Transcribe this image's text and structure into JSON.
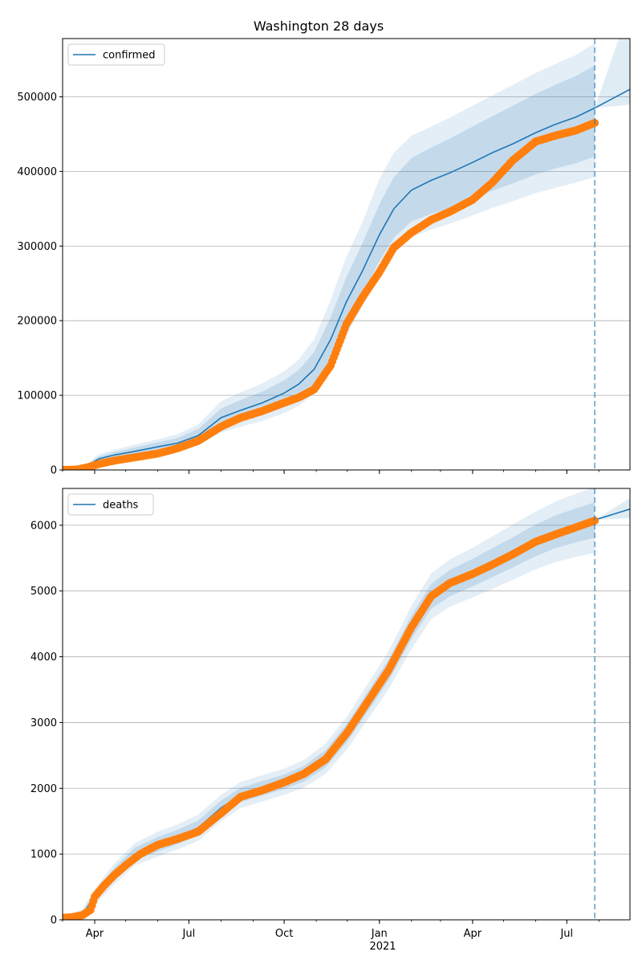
{
  "chart_data": [
    {
      "type": "line",
      "title": "Washington 28 days",
      "legend": [
        "confirmed"
      ],
      "legend_position": "top-left",
      "grid": "horizontal",
      "xlabel": "",
      "ylabel": "",
      "xlim": [
        "2020-03-01",
        "2021-08-31"
      ],
      "ylim": [
        0,
        578000
      ],
      "yticks": [
        0,
        100000,
        200000,
        300000,
        400000,
        500000
      ],
      "forecast_line_date": "2021-07-28",
      "colors": {
        "model": "#1f77b4",
        "observed": "#ff7f0e",
        "band": "#1f77b4",
        "forecast_line": "#1f77b4"
      },
      "series": [
        {
          "name": "confirmed",
          "kind": "model",
          "x": [
            "2020-03-01",
            "2020-03-15",
            "2020-03-25",
            "2020-04-05",
            "2020-04-20",
            "2020-05-10",
            "2020-06-01",
            "2020-06-20",
            "2020-07-10",
            "2020-08-01",
            "2020-08-20",
            "2020-09-10",
            "2020-10-01",
            "2020-10-15",
            "2020-10-30",
            "2020-11-15",
            "2020-11-30",
            "2020-12-15",
            "2021-01-01",
            "2021-01-15",
            "2021-02-01",
            "2021-02-20",
            "2021-03-10",
            "2021-04-01",
            "2021-04-20",
            "2021-05-10",
            "2021-06-01",
            "2021-06-20",
            "2021-07-10",
            "2021-07-28"
          ],
          "y": [
            0,
            1000,
            6000,
            15000,
            20000,
            25000,
            31000,
            36000,
            46000,
            70000,
            80000,
            90000,
            103000,
            115000,
            135000,
            175000,
            225000,
            265000,
            315000,
            350000,
            375000,
            388000,
            398000,
            412000,
            425000,
            437000,
            452000,
            463000,
            473000,
            485000
          ],
          "band_50": [
            [
              0,
              0
            ],
            [
              500,
              1500
            ],
            [
              4500,
              7500
            ],
            [
              12000,
              18000
            ],
            [
              16000,
              24000
            ],
            [
              20000,
              30000
            ],
            [
              25000,
              37000
            ],
            [
              29000,
              43000
            ],
            [
              38000,
              55000
            ],
            [
              58000,
              82000
            ],
            [
              67000,
              94000
            ],
            [
              76000,
              105000
            ],
            [
              87000,
              120000
            ],
            [
              97000,
              134000
            ],
            [
              114000,
              158000
            ],
            [
              150000,
              205000
            ],
            [
              196000,
              258000
            ],
            [
              234000,
              302000
            ],
            [
              280000,
              356000
            ],
            [
              311000,
              392000
            ],
            [
              333000,
              418000
            ],
            [
              343000,
              432000
            ],
            [
              351000,
              444000
            ],
            [
              363000,
              460000
            ],
            [
              374000,
              474000
            ],
            [
              384000,
              488000
            ],
            [
              396000,
              504000
            ],
            [
              404000,
              516000
            ],
            [
              411000,
              528000
            ],
            [
              420000,
              542000
            ]
          ],
          "band_80": [
            [
              0,
              0
            ],
            [
              300,
              1800
            ],
            [
              3500,
              9000
            ],
            [
              10000,
              21000
            ],
            [
              13000,
              27000
            ],
            [
              17000,
              34000
            ],
            [
              21000,
              41000
            ],
            [
              25000,
              48000
            ],
            [
              33000,
              61000
            ],
            [
              50000,
              92000
            ],
            [
              58000,
              104000
            ],
            [
              66000,
              116000
            ],
            [
              76000,
              132000
            ],
            [
              86000,
              148000
            ],
            [
              102000,
              175000
            ],
            [
              135000,
              228000
            ],
            [
              180000,
              285000
            ],
            [
              218000,
              330000
            ],
            [
              262000,
              390000
            ],
            [
              290000,
              425000
            ],
            [
              312000,
              448000
            ],
            [
              322000,
              460000
            ],
            [
              330000,
              472000
            ],
            [
              341000,
              488000
            ],
            [
              351000,
              502000
            ],
            [
              360000,
              516000
            ],
            [
              371000,
              532000
            ],
            [
              378000,
              544000
            ],
            [
              385000,
              556000
            ],
            [
              392000,
              572000
            ]
          ]
        },
        {
          "name": "observed",
          "kind": "observed",
          "x": [
            "2020-03-01",
            "2020-03-15",
            "2020-03-25",
            "2020-04-05",
            "2020-04-20",
            "2020-05-10",
            "2020-06-01",
            "2020-06-20",
            "2020-07-10",
            "2020-08-01",
            "2020-08-20",
            "2020-09-10",
            "2020-10-01",
            "2020-10-15",
            "2020-10-30",
            "2020-11-15",
            "2020-11-30",
            "2020-12-15",
            "2021-01-01",
            "2021-01-15",
            "2021-02-01",
            "2021-02-20",
            "2021-03-10",
            "2021-04-01",
            "2021-04-20",
            "2021-05-10",
            "2021-06-01",
            "2021-06-20",
            "2021-07-10",
            "2021-07-28"
          ],
          "y": [
            0,
            600,
            3500,
            8000,
            12500,
            17000,
            22000,
            29000,
            39000,
            58000,
            70000,
            79000,
            90000,
            97000,
            108000,
            140000,
            195000,
            230000,
            265000,
            298000,
            318000,
            335000,
            346000,
            362000,
            385000,
            415000,
            440000,
            448000,
            455000,
            465000
          ]
        }
      ]
    },
    {
      "type": "line",
      "title": "",
      "legend": [
        "deaths"
      ],
      "legend_position": "top-left",
      "grid": "horizontal",
      "xlabel": "",
      "ylabel": "",
      "xlim": [
        "2020-03-01",
        "2021-08-31"
      ],
      "ylim": [
        0,
        6560
      ],
      "yticks": [
        0,
        1000,
        2000,
        3000,
        4000,
        5000,
        6000
      ],
      "xticks": [
        {
          "date": "2020-04-01",
          "label": "Apr"
        },
        {
          "date": "2020-07-01",
          "label": "Jul"
        },
        {
          "date": "2020-10-01",
          "label": "Oct"
        },
        {
          "date": "2021-01-01",
          "label": "Jan"
        },
        {
          "date": "2021-04-01",
          "label": "Apr"
        },
        {
          "date": "2021-07-01",
          "label": "Jul"
        }
      ],
      "year_label": "2021",
      "forecast_line_date": "2021-07-28",
      "colors": {
        "model": "#1f77b4",
        "observed": "#ff7f0e",
        "band": "#1f77b4",
        "forecast_line": "#1f77b4"
      },
      "series": [
        {
          "name": "deaths",
          "kind": "model",
          "x": [
            "2020-03-01",
            "2020-03-20",
            "2020-04-01",
            "2020-04-20",
            "2020-05-10",
            "2020-06-01",
            "2020-06-20",
            "2020-07-10",
            "2020-08-01",
            "2020-08-20",
            "2020-09-10",
            "2020-10-01",
            "2020-10-20",
            "2020-11-10",
            "2020-12-01",
            "2020-12-20",
            "2021-01-10",
            "2021-02-01",
            "2021-02-20",
            "2021-03-10",
            "2021-04-01",
            "2021-04-20",
            "2021-05-10",
            "2021-06-01",
            "2021-06-20",
            "2021-07-10",
            "2021-07-28"
          ],
          "y": [
            10,
            80,
            350,
            700,
            1000,
            1150,
            1260,
            1400,
            1700,
            1900,
            2000,
            2100,
            2220,
            2450,
            2850,
            3300,
            3800,
            4450,
            4920,
            5120,
            5280,
            5430,
            5590,
            5770,
            5900,
            6000,
            6080
          ],
          "band_50": [
            [
              0,
              20
            ],
            [
              40,
              120
            ],
            [
              280,
              420
            ],
            [
              600,
              790
            ],
            [
              900,
              1100
            ],
            [
              1040,
              1260
            ],
            [
              1150,
              1370
            ],
            [
              1290,
              1510
            ],
            [
              1590,
              1810
            ],
            [
              1790,
              2010
            ],
            [
              1890,
              2110
            ],
            [
              1990,
              2210
            ],
            [
              2100,
              2340
            ],
            [
              2320,
              2580
            ],
            [
              2710,
              2990
            ],
            [
              3150,
              3450
            ],
            [
              3640,
              3960
            ],
            [
              4270,
              4630
            ],
            [
              4730,
              5110
            ],
            [
              4920,
              5320
            ],
            [
              5070,
              5490
            ],
            [
              5210,
              5650
            ],
            [
              5360,
              5820
            ],
            [
              5530,
              6010
            ],
            [
              5650,
              6150
            ],
            [
              5740,
              6260
            ],
            [
              5810,
              6350
            ]
          ],
          "band_80": [
            [
              0,
              40
            ],
            [
              20,
              160
            ],
            [
              230,
              470
            ],
            [
              540,
              860
            ],
            [
              830,
              1170
            ],
            [
              960,
              1340
            ],
            [
              1070,
              1450
            ],
            [
              1200,
              1600
            ],
            [
              1500,
              1900
            ],
            [
              1700,
              2100
            ],
            [
              1800,
              2200
            ],
            [
              1900,
              2300
            ],
            [
              2010,
              2430
            ],
            [
              2220,
              2680
            ],
            [
              2600,
              3100
            ],
            [
              3030,
              3570
            ],
            [
              3510,
              4090
            ],
            [
              4120,
              4780
            ],
            [
              4570,
              5270
            ],
            [
              4760,
              5480
            ],
            [
              4900,
              5660
            ],
            [
              5030,
              5830
            ],
            [
              5170,
              6010
            ],
            [
              5330,
              6210
            ],
            [
              5440,
              6360
            ],
            [
              5520,
              6480
            ],
            [
              5580,
              6580
            ]
          ]
        },
        {
          "name": "observed",
          "kind": "observed",
          "x": [
            "2020-03-01",
            "2020-03-10",
            "2020-03-20",
            "2020-03-28",
            "2020-04-01",
            "2020-04-10",
            "2020-04-20",
            "2020-05-01",
            "2020-05-15",
            "2020-06-01",
            "2020-06-20",
            "2020-07-10",
            "2020-08-01",
            "2020-08-20",
            "2020-09-10",
            "2020-10-01",
            "2020-10-20",
            "2020-11-10",
            "2020-12-01",
            "2020-12-20",
            "2021-01-10",
            "2021-02-01",
            "2021-02-20",
            "2021-03-10",
            "2021-04-01",
            "2021-04-20",
            "2021-05-10",
            "2021-06-01",
            "2021-06-20",
            "2021-07-10",
            "2021-07-28"
          ],
          "y": [
            30,
            40,
            70,
            150,
            350,
            520,
            680,
            830,
            1000,
            1140,
            1230,
            1340,
            1620,
            1870,
            1970,
            2090,
            2220,
            2440,
            2850,
            3300,
            3800,
            4450,
            4920,
            5120,
            5260,
            5400,
            5560,
            5750,
            5860,
            5970,
            6070
          ]
        }
      ]
    }
  ]
}
